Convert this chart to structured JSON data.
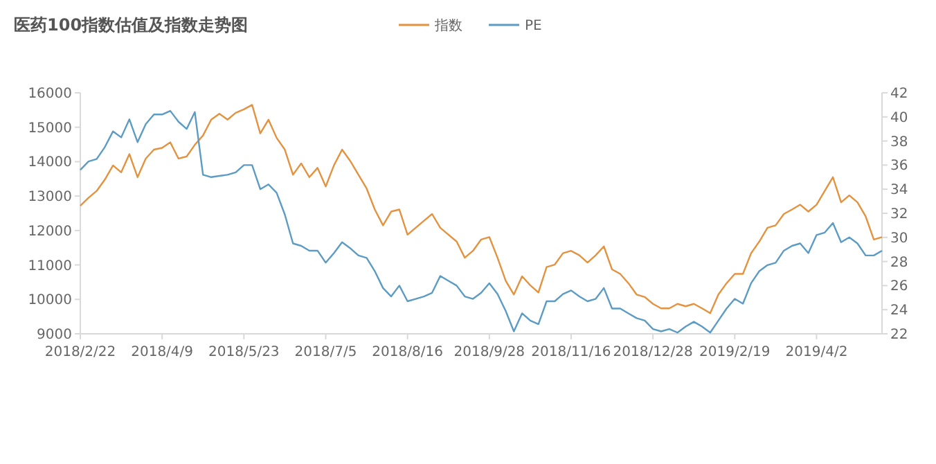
{
  "chart_data": {
    "type": "line",
    "title": "医药100指数估值及指数走势图",
    "categories": [
      "2018/2/22",
      null,
      null,
      null,
      null,
      null,
      null,
      null,
      null,
      null,
      "2018/4/9",
      null,
      null,
      null,
      null,
      null,
      null,
      null,
      null,
      null,
      "2018/5/23",
      null,
      null,
      null,
      null,
      null,
      null,
      null,
      null,
      null,
      "2018/7/5",
      null,
      null,
      null,
      null,
      null,
      null,
      null,
      null,
      null,
      "2018/8/16",
      null,
      null,
      null,
      null,
      null,
      null,
      null,
      null,
      null,
      "2018/9/28",
      null,
      null,
      null,
      null,
      null,
      null,
      null,
      null,
      null,
      "2018/11/16",
      null,
      null,
      null,
      null,
      null,
      null,
      null,
      null,
      null,
      "2018/12/28",
      null,
      null,
      null,
      null,
      null,
      null,
      null,
      null,
      null,
      "2019/2/19",
      null,
      null,
      null,
      null,
      null,
      null,
      null,
      null,
      null,
      "2019/4/2",
      null,
      null,
      null,
      null,
      null,
      null,
      null,
      null
    ],
    "series": [
      {
        "name": "指数",
        "color": "#e3923f",
        "values": [
          12720,
          12950,
          13150,
          13480,
          13890,
          13690,
          14220,
          13550,
          14090,
          14350,
          14400,
          14560,
          14090,
          14150,
          14490,
          14760,
          15220,
          15390,
          15220,
          15420,
          15520,
          15650,
          14820,
          15220,
          14690,
          14350,
          13620,
          13950,
          13550,
          13820,
          13280,
          13890,
          14350,
          14020,
          13620,
          13220,
          12610,
          12150,
          12550,
          12610,
          11880,
          12080,
          12280,
          12480,
          12080,
          11880,
          11680,
          11210,
          11410,
          11740,
          11810,
          11210,
          10540,
          10140,
          10670,
          10410,
          10200,
          10940,
          11010,
          11340,
          11410,
          11280,
          11070,
          11280,
          11540,
          10870,
          10740,
          10470,
          10140,
          10070,
          9870,
          9740,
          9740,
          9870,
          9800,
          9870,
          9740,
          9600,
          10140,
          10470,
          10740,
          10740,
          11340,
          11680,
          12080,
          12150,
          12480,
          12610,
          12750,
          12550,
          12750,
          13150,
          13550,
          12820,
          13020,
          12820,
          12410,
          11740,
          11810
        ]
      },
      {
        "name": "PE",
        "color": "#5b9bc4",
        "axis": "y2",
        "values": [
          35.6,
          36.3,
          36.5,
          37.5,
          38.8,
          38.3,
          39.8,
          37.9,
          39.4,
          40.2,
          40.2,
          40.5,
          39.6,
          39.0,
          40.4,
          35.2,
          35.0,
          35.1,
          35.2,
          35.4,
          36.0,
          36.0,
          34.0,
          34.4,
          33.7,
          31.9,
          29.5,
          29.3,
          28.9,
          28.9,
          27.9,
          28.7,
          29.6,
          29.1,
          28.5,
          28.3,
          27.2,
          25.8,
          25.1,
          26.0,
          24.7,
          24.9,
          25.1,
          25.4,
          26.8,
          26.4,
          26.0,
          25.1,
          24.9,
          25.4,
          26.2,
          25.3,
          23.9,
          22.2,
          23.7,
          23.1,
          22.8,
          24.7,
          24.7,
          25.3,
          25.6,
          25.1,
          24.7,
          24.9,
          25.8,
          24.1,
          24.1,
          23.7,
          23.3,
          23.1,
          22.4,
          22.2,
          22.4,
          22.1,
          22.6,
          23.0,
          22.6,
          22.1,
          23.1,
          24.1,
          24.9,
          24.5,
          26.2,
          27.2,
          27.7,
          27.9,
          28.9,
          29.3,
          29.5,
          28.7,
          30.2,
          30.4,
          31.2,
          29.6,
          30.0,
          29.5,
          28.5,
          28.5,
          28.9
        ]
      }
    ],
    "ylim": [
      9000,
      16000
    ],
    "yticks": [
      9000,
      10000,
      11000,
      12000,
      13000,
      14000,
      15000,
      16000
    ],
    "y2lim": [
      22,
      42
    ],
    "y2ticks": [
      22,
      24,
      26,
      28,
      30,
      32,
      34,
      36,
      38,
      40,
      42
    ],
    "grid": false,
    "legend": "top",
    "marker": "none",
    "line_style": "solid"
  }
}
